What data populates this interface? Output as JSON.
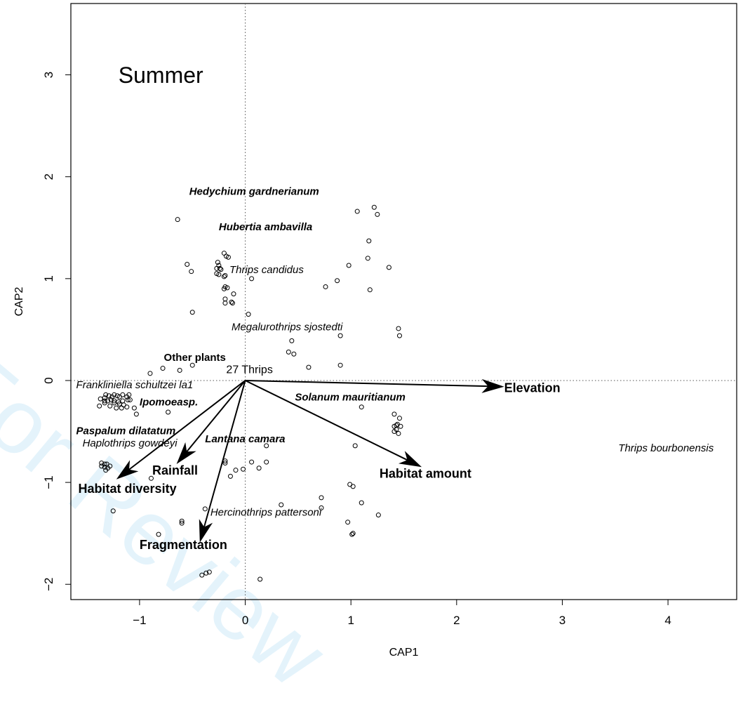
{
  "watermark": "For Review",
  "chart_data": {
    "type": "scatter",
    "title": "Summer",
    "xlabel": "CAP1",
    "ylabel": "CAP2",
    "xlim": [
      -1.65,
      4.65
    ],
    "ylim": [
      -2.15,
      3.7
    ],
    "xticks": [
      -1,
      0,
      1,
      2,
      3,
      4
    ],
    "yticks": [
      -2,
      -1,
      0,
      1,
      2,
      3
    ],
    "zero_reference_lines": true,
    "arrow_color": "#000000",
    "points": [
      [
        -0.64,
        1.58
      ],
      [
        -0.55,
        1.14
      ],
      [
        -0.51,
        1.07
      ],
      [
        -0.5,
        0.67
      ],
      [
        -0.2,
        1.25
      ],
      [
        -0.18,
        1.22
      ],
      [
        -0.16,
        1.21
      ],
      [
        -0.26,
        1.16
      ],
      [
        -0.25,
        1.13
      ],
      [
        -0.27,
        1.1
      ],
      [
        -0.24,
        1.1
      ],
      [
        -0.23,
        1.09
      ],
      [
        -0.19,
        1.03
      ],
      [
        -0.2,
        1.02
      ],
      [
        -0.27,
        1.05
      ],
      [
        -0.25,
        1.04
      ],
      [
        -0.19,
        0.92
      ],
      [
        -0.2,
        0.9
      ],
      [
        -0.17,
        0.91
      ],
      [
        -0.11,
        0.85
      ],
      [
        -0.19,
        0.8
      ],
      [
        -0.13,
        0.77
      ],
      [
        -0.12,
        0.76
      ],
      [
        -0.19,
        0.76
      ],
      [
        0.06,
        1.0
      ],
      [
        0.03,
        0.65
      ],
      [
        1.06,
        1.66
      ],
      [
        1.22,
        1.7
      ],
      [
        1.25,
        1.63
      ],
      [
        1.17,
        1.37
      ],
      [
        1.16,
        1.2
      ],
      [
        1.36,
        1.11
      ],
      [
        0.98,
        1.13
      ],
      [
        1.18,
        0.89
      ],
      [
        0.87,
        0.98
      ],
      [
        0.76,
        0.92
      ],
      [
        1.45,
        0.51
      ],
      [
        1.46,
        0.44
      ],
      [
        0.9,
        0.44
      ],
      [
        0.44,
        0.39
      ],
      [
        0.41,
        0.28
      ],
      [
        0.46,
        0.26
      ],
      [
        0.6,
        0.13
      ],
      [
        0.9,
        0.15
      ],
      [
        -0.5,
        0.15
      ],
      [
        -0.62,
        0.1
      ],
      [
        -0.78,
        0.12
      ],
      [
        -0.9,
        0.07
      ],
      [
        -1.38,
        -0.25
      ],
      [
        -1.37,
        -0.18
      ],
      [
        -1.33,
        -0.17
      ],
      [
        -1.32,
        -0.14
      ],
      [
        -1.29,
        -0.15
      ],
      [
        -1.26,
        -0.16
      ],
      [
        -1.24,
        -0.14
      ],
      [
        -1.21,
        -0.15
      ],
      [
        -1.19,
        -0.16
      ],
      [
        -1.16,
        -0.14
      ],
      [
        -1.12,
        -0.16
      ],
      [
        -1.1,
        -0.14
      ],
      [
        -1.33,
        -0.2
      ],
      [
        -1.3,
        -0.2
      ],
      [
        -1.27,
        -0.19
      ],
      [
        -1.24,
        -0.2
      ],
      [
        -1.2,
        -0.21
      ],
      [
        -1.16,
        -0.2
      ],
      [
        -1.11,
        -0.19
      ],
      [
        -1.09,
        -0.19
      ],
      [
        -1.33,
        -0.22
      ],
      [
        -1.28,
        -0.25
      ],
      [
        -1.24,
        -0.22
      ],
      [
        -1.19,
        -0.23
      ],
      [
        -1.15,
        -0.24
      ],
      [
        -1.12,
        -0.26
      ],
      [
        -1.22,
        -0.27
      ],
      [
        -1.17,
        -0.27
      ],
      [
        -1.05,
        -0.27
      ],
      [
        -1.03,
        -0.33
      ],
      [
        -0.73,
        -0.31
      ],
      [
        -1.36,
        -0.81
      ],
      [
        -1.33,
        -0.82
      ],
      [
        -1.31,
        -0.82
      ],
      [
        -1.28,
        -0.84
      ],
      [
        -1.36,
        -0.84
      ],
      [
        -1.33,
        -0.85
      ],
      [
        -1.3,
        -0.86
      ],
      [
        -1.32,
        -0.88
      ],
      [
        -1.25,
        -1.28
      ],
      [
        -0.89,
        -0.96
      ],
      [
        -0.82,
        -1.51
      ],
      [
        -0.6,
        -1.38
      ],
      [
        -0.6,
        -1.4
      ],
      [
        -0.38,
        -1.26
      ],
      [
        -0.19,
        -0.79
      ],
      [
        -0.19,
        -0.81
      ],
      [
        -0.14,
        -0.94
      ],
      [
        -0.09,
        -0.88
      ],
      [
        -0.02,
        -0.87
      ],
      [
        0.06,
        -0.8
      ],
      [
        0.13,
        -0.86
      ],
      [
        0.2,
        -0.8
      ],
      [
        0.2,
        -0.64
      ],
      [
        -0.41,
        -1.91
      ],
      [
        -0.37,
        -1.89
      ],
      [
        -0.34,
        -1.88
      ],
      [
        0.14,
        -1.95
      ],
      [
        0.34,
        -1.22
      ],
      [
        0.72,
        -1.15
      ],
      [
        0.72,
        -1.25
      ],
      [
        0.99,
        -1.02
      ],
      [
        1.02,
        -1.04
      ],
      [
        0.97,
        -1.39
      ],
      [
        1.1,
        -1.2
      ],
      [
        1.26,
        -1.32
      ],
      [
        1.02,
        -1.5
      ],
      [
        1.01,
        -1.51
      ],
      [
        1.04,
        -0.64
      ],
      [
        1.1,
        -0.26
      ],
      [
        1.41,
        -0.33
      ],
      [
        1.46,
        -0.37
      ],
      [
        1.41,
        -0.45
      ],
      [
        1.43,
        -0.44
      ],
      [
        1.44,
        -0.43
      ],
      [
        1.47,
        -0.45
      ],
      [
        1.43,
        -0.48
      ],
      [
        1.41,
        -0.5
      ],
      [
        1.45,
        -0.52
      ]
    ],
    "arrows": [
      {
        "label": "Elevation",
        "x": 2.45,
        "y": -0.06
      },
      {
        "label": "Habitat amount",
        "x": 1.67,
        "y": -0.85
      },
      {
        "label": "Habitat diversity",
        "x": -1.22,
        "y": -0.97
      },
      {
        "label": "Rainfall",
        "x": -0.65,
        "y": -0.82
      },
      {
        "label": "Fragmentation",
        "x": -0.43,
        "y": -1.59
      }
    ],
    "annotations": [
      {
        "text": "Summer",
        "x": -1.2,
        "y": 3.0,
        "style": "title"
      },
      {
        "text": "Hedychium gardnerianum",
        "x": -0.53,
        "y": 1.86,
        "style": "bold-italic"
      },
      {
        "text": "Hubertia ambavilla",
        "x": -0.25,
        "y": 1.51,
        "style": "bold-italic"
      },
      {
        "text": "Thrips candidus",
        "x": -0.15,
        "y": 1.09,
        "style": "italic"
      },
      {
        "text": "Megalurothrips sjostedti",
        "x": -0.13,
        "y": 0.53,
        "style": "italic"
      },
      {
        "text": "Other plants",
        "x": -0.77,
        "y": 0.23,
        "style": "bold"
      },
      {
        "text": "27 Thrips",
        "x": -0.18,
        "y": 0.11,
        "style": "plain"
      },
      {
        "text": "Frankliniella schultzei la1",
        "x": -1.6,
        "y": -0.04,
        "style": "italic"
      },
      {
        "text": "Ipomoeasp.",
        "x": -1.0,
        "y": -0.21,
        "style": "bold-italic"
      },
      {
        "text": "Solanum mauritianum",
        "x": 0.47,
        "y": -0.16,
        "style": "bold-italic"
      },
      {
        "text": "Elevation",
        "x": 2.45,
        "y": -0.07,
        "style": "bold-large"
      },
      {
        "text": "Paspalum dilatatum",
        "x": -1.6,
        "y": -0.49,
        "style": "bold-italic"
      },
      {
        "text": "Haplothrips gowdeyi",
        "x": -1.54,
        "y": -0.61,
        "style": "italic"
      },
      {
        "text": "Lantana camara",
        "x": -0.38,
        "y": -0.57,
        "style": "bold-italic"
      },
      {
        "text": "Thrips bourbonensis",
        "x": 3.53,
        "y": -0.66,
        "style": "italic"
      },
      {
        "text": "Rainfall",
        "x": -0.88,
        "y": -0.88,
        "style": "bold-large"
      },
      {
        "text": "Habitat amount",
        "x": 1.27,
        "y": -0.91,
        "style": "bold-large"
      },
      {
        "text": "Habitat diversity",
        "x": -1.58,
        "y": -1.06,
        "style": "bold-large"
      },
      {
        "text": "Hercinothrips pattersoni",
        "x": -0.33,
        "y": -1.29,
        "style": "italic"
      },
      {
        "text": "Fragmentation",
        "x": -1.0,
        "y": -1.61,
        "style": "bold-large"
      }
    ]
  }
}
